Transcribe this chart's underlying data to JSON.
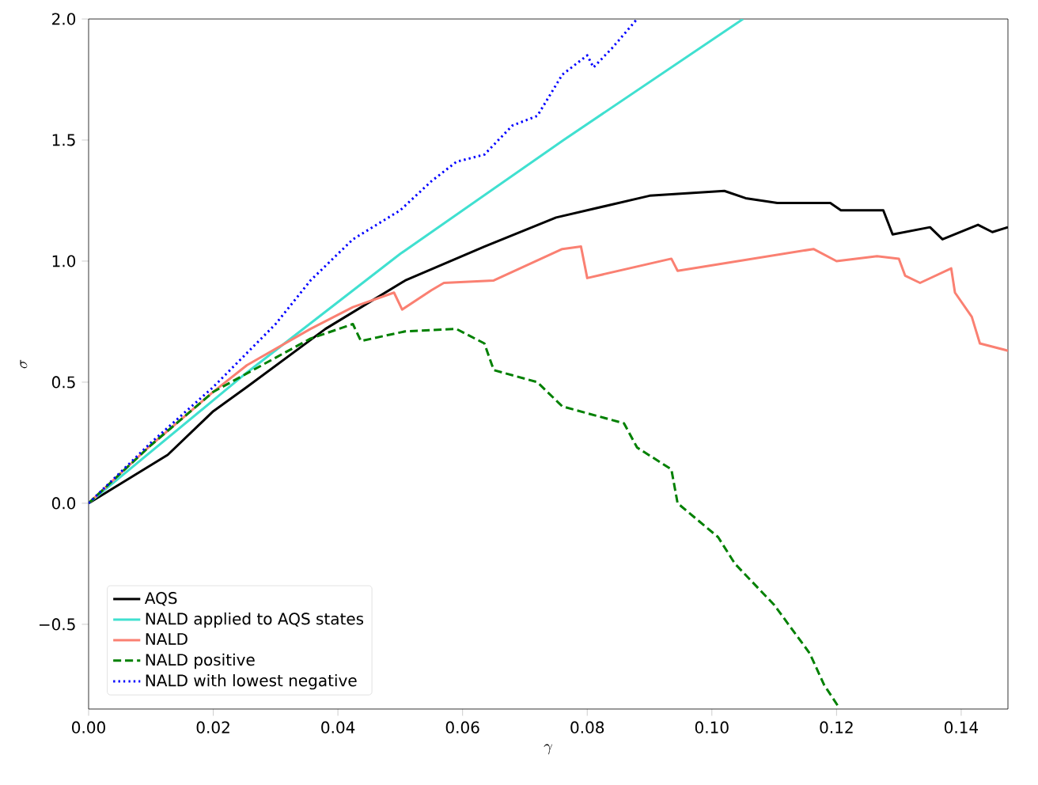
{
  "chart_data": {
    "type": "line",
    "xlabel": "\\gamma",
    "ylabel": "\\sigma",
    "xlim": [
      0,
      0.1475
    ],
    "ylim": [
      -0.85,
      2.0
    ],
    "xticks": [
      {
        "value": 0,
        "label": "0.00"
      },
      {
        "value": 0.02,
        "label": "0.02"
      },
      {
        "value": 0.04,
        "label": "0.04"
      },
      {
        "value": 0.06,
        "label": "0.06"
      },
      {
        "value": 0.08,
        "label": "0.08"
      },
      {
        "value": 0.1,
        "label": "0.10"
      },
      {
        "value": 0.12,
        "label": "0.12"
      },
      {
        "value": 0.14,
        "label": "0.14"
      }
    ],
    "yticks": [
      {
        "value": -0.5,
        "label": "−0.5"
      },
      {
        "value": 0,
        "label": "0.0"
      },
      {
        "value": 0.5,
        "label": "0.5"
      },
      {
        "value": 1,
        "label": "1.0"
      },
      {
        "value": 1.5,
        "label": "1.5"
      },
      {
        "value": 2,
        "label": "2.0"
      }
    ],
    "legend": "bottom left",
    "grid": false,
    "series": [
      {
        "name": "AQS",
        "color": "#000000",
        "line_style": "solid",
        "x": [
          0,
          0.0127,
          0.02,
          0.0254,
          0.038,
          0.0508,
          0.0635,
          0.075,
          0.09,
          0.102,
          0.1054,
          0.1105,
          0.119,
          0.1207,
          0.1275,
          0.129,
          0.135,
          0.137,
          0.1427,
          0.145,
          0.1475
        ],
        "values": [
          0,
          0.2,
          0.38,
          0.48,
          0.72,
          0.92,
          1.06,
          1.18,
          1.27,
          1.29,
          1.26,
          1.24,
          1.24,
          1.21,
          1.21,
          1.11,
          1.14,
          1.09,
          1.15,
          1.12,
          1.14
        ]
      },
      {
        "name": "NALD applied to AQS states",
        "color": "#40e0d0",
        "line_style": "solid",
        "x": [
          0,
          0.0127,
          0.0254,
          0.05,
          0.0762,
          0.105
        ],
        "values": [
          0,
          0.27,
          0.54,
          1.03,
          1.5,
          2.0
        ]
      },
      {
        "name": "NALD",
        "color": "#fa8072",
        "line_style": "solid",
        "x": [
          0,
          0.01,
          0.02,
          0.0254,
          0.0356,
          0.0424,
          0.049,
          0.0503,
          0.055,
          0.057,
          0.065,
          0.076,
          0.079,
          0.08,
          0.0935,
          0.0945,
          0.1163,
          0.12,
          0.1265,
          0.13,
          0.131,
          0.1334,
          0.1384,
          0.139,
          0.1417,
          0.143,
          0.1475
        ],
        "values": [
          0,
          0.24,
          0.46,
          0.57,
          0.72,
          0.81,
          0.87,
          0.8,
          0.88,
          0.91,
          0.92,
          1.05,
          1.06,
          0.93,
          1.01,
          0.96,
          1.05,
          1.0,
          1.02,
          1.01,
          0.94,
          0.91,
          0.97,
          0.87,
          0.77,
          0.66,
          0.63
        ]
      },
      {
        "name": "NALD positive",
        "color": "#008000",
        "line_style": "dashed",
        "x": [
          0,
          0.01,
          0.02,
          0.0356,
          0.0424,
          0.0437,
          0.0508,
          0.059,
          0.0635,
          0.065,
          0.072,
          0.076,
          0.0859,
          0.088,
          0.0935,
          0.0945,
          0.101,
          0.1037,
          0.11,
          0.1157,
          0.118,
          0.1203
        ],
        "values": [
          0,
          0.24,
          0.46,
          0.68,
          0.74,
          0.67,
          0.71,
          0.72,
          0.66,
          0.55,
          0.5,
          0.4,
          0.33,
          0.23,
          0.14,
          0.0,
          -0.14,
          -0.25,
          -0.42,
          -0.62,
          -0.75,
          -0.84
        ]
      },
      {
        "name": "NALD with lowest negative",
        "color": "#0000ff",
        "line_style": "dotted",
        "x": [
          0,
          0.01,
          0.02,
          0.03,
          0.0356,
          0.0424,
          0.05,
          0.055,
          0.059,
          0.0635,
          0.068,
          0.072,
          0.076,
          0.08,
          0.081,
          0.084,
          0.088
        ],
        "values": [
          0,
          0.25,
          0.48,
          0.74,
          0.92,
          1.09,
          1.21,
          1.33,
          1.41,
          1.44,
          1.56,
          1.6,
          1.77,
          1.85,
          1.8,
          1.88,
          2.0
        ]
      }
    ]
  }
}
